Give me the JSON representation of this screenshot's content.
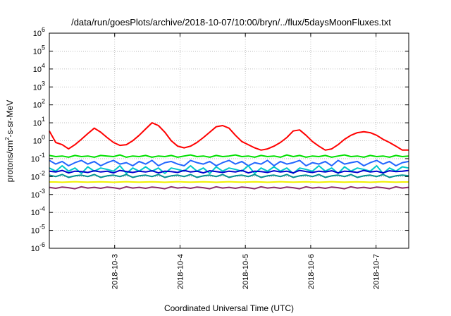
{
  "chart_data": {
    "type": "line",
    "title": "/data/run/goesPlots/archive/2018-10-07/10:00/bryn/../flux/5daysMoonFluxes.txt",
    "xlabel": "Coordinated Universal Time (UTC)",
    "ylabel_main": "protons/cm",
    "ylabel_sup": "2",
    "ylabel_tail": "-s-sr-MeV",
    "yscale": "log",
    "ylim_exp": [
      -6,
      6
    ],
    "y_tick_exponents": [
      -6,
      -5,
      -4,
      -3,
      -2,
      -1,
      0,
      1,
      2,
      3,
      4,
      5,
      6
    ],
    "y_tick_base": "10",
    "xlim_days": [
      0,
      5.5
    ],
    "x_ticks": [
      {
        "label": "2018-10-3",
        "day": 1.0
      },
      {
        "label": "2018-10-4",
        "day": 2.0
      },
      {
        "label": "2018-10-5",
        "day": 3.0
      },
      {
        "label": "2018-10-6",
        "day": 4.0
      },
      {
        "label": "2018-10-7",
        "day": 5.0
      }
    ],
    "grid": true,
    "legend": "none",
    "series": [
      {
        "color": "#ff0000",
        "values": [
          3.5,
          0.8,
          0.6,
          0.35,
          0.6,
          1.2,
          2.5,
          5.0,
          3.0,
          1.5,
          0.8,
          0.55,
          0.6,
          1.0,
          2.0,
          4.5,
          10.0,
          7.0,
          3.0,
          1.0,
          0.5,
          0.4,
          0.5,
          0.8,
          1.5,
          3.0,
          6.0,
          7.0,
          5.0,
          2.0,
          0.9,
          0.6,
          0.4,
          0.3,
          0.35,
          0.5,
          0.8,
          1.5,
          3.5,
          4.0,
          2.0,
          0.9,
          0.5,
          0.3,
          0.35,
          0.6,
          1.2,
          2.0,
          2.8,
          3.2,
          2.8,
          2.0,
          1.2,
          0.8,
          0.5,
          0.3,
          0.3
        ]
      },
      {
        "color": "#00e000",
        "values": [
          0.15,
          0.13,
          0.14,
          0.12,
          0.15,
          0.13,
          0.14,
          0.12,
          0.15,
          0.14,
          0.13,
          0.16,
          0.12,
          0.14,
          0.13,
          0.15,
          0.12,
          0.14,
          0.13,
          0.15,
          0.12,
          0.14,
          0.16,
          0.13,
          0.14,
          0.12,
          0.15,
          0.13,
          0.14,
          0.16,
          0.13,
          0.14,
          0.12,
          0.15,
          0.13,
          0.14,
          0.12,
          0.16,
          0.13,
          0.15,
          0.12,
          0.14,
          0.13,
          0.15,
          0.12,
          0.14,
          0.16,
          0.13,
          0.14,
          0.12,
          0.15,
          0.13,
          0.14,
          0.12,
          0.15,
          0.13,
          0.14
        ]
      },
      {
        "color": "#2266ff",
        "values": [
          0.08,
          0.05,
          0.07,
          0.04,
          0.06,
          0.08,
          0.05,
          0.07,
          0.04,
          0.06,
          0.08,
          0.05,
          0.06,
          0.04,
          0.07,
          0.05,
          0.08,
          0.04,
          0.06,
          0.07,
          0.05,
          0.04,
          0.08,
          0.06,
          0.05,
          0.07,
          0.04,
          0.06,
          0.08,
          0.05,
          0.07,
          0.04,
          0.06,
          0.05,
          0.08,
          0.04,
          0.07,
          0.05,
          0.06,
          0.08,
          0.04,
          0.06,
          0.05,
          0.07,
          0.04,
          0.08,
          0.05,
          0.06,
          0.07,
          0.04,
          0.06,
          0.08,
          0.05,
          0.07,
          0.04,
          0.06,
          0.07
        ]
      },
      {
        "color": "#00c8c8",
        "values": [
          0.03,
          0.02,
          0.04,
          0.02,
          0.03,
          0.015,
          0.035,
          0.02,
          0.03,
          0.025,
          0.02,
          0.04,
          0.015,
          0.03,
          0.02,
          0.035,
          0.02,
          0.03,
          0.015,
          0.03,
          0.025,
          0.02,
          0.04,
          0.02,
          0.03,
          0.015,
          0.035,
          0.02,
          0.03,
          0.025,
          0.02,
          0.04,
          0.015,
          0.03,
          0.02,
          0.035,
          0.02,
          0.03,
          0.015,
          0.03,
          0.025,
          0.02,
          0.04,
          0.02,
          0.03,
          0.015,
          0.035,
          0.02,
          0.03,
          0.025,
          0.02,
          0.04,
          0.015,
          0.03,
          0.02,
          0.035,
          0.03
        ]
      },
      {
        "color": "#0000cc",
        "values": [
          0.02,
          0.018,
          0.022,
          0.016,
          0.02,
          0.019,
          0.017,
          0.021,
          0.018,
          0.02,
          0.016,
          0.022,
          0.019,
          0.017,
          0.02,
          0.018,
          0.021,
          0.016,
          0.02,
          0.019,
          0.017,
          0.022,
          0.018,
          0.02,
          0.016,
          0.021,
          0.019,
          0.017,
          0.02,
          0.018,
          0.022,
          0.016,
          0.02,
          0.019,
          0.017,
          0.021,
          0.018,
          0.02,
          0.016,
          0.022,
          0.019,
          0.017,
          0.02,
          0.018,
          0.021,
          0.016,
          0.02,
          0.019,
          0.017,
          0.022,
          0.018,
          0.02,
          0.016,
          0.021,
          0.019,
          0.02,
          0.022
        ]
      },
      {
        "color": "#009090",
        "values": [
          0.012,
          0.01,
          0.013,
          0.009,
          0.011,
          0.012,
          0.01,
          0.013,
          0.009,
          0.011,
          0.012,
          0.01,
          0.013,
          0.009,
          0.011,
          0.012,
          0.01,
          0.013,
          0.009,
          0.011,
          0.012,
          0.01,
          0.013,
          0.009,
          0.011,
          0.012,
          0.01,
          0.013,
          0.009,
          0.011,
          0.012,
          0.01,
          0.013,
          0.009,
          0.011,
          0.012,
          0.01,
          0.013,
          0.009,
          0.011,
          0.012,
          0.01,
          0.013,
          0.009,
          0.011,
          0.012,
          0.01,
          0.013,
          0.009,
          0.011,
          0.012,
          0.01,
          0.013,
          0.009,
          0.011,
          0.012,
          0.011
        ]
      },
      {
        "color": "#f0f000",
        "values": [
          0.005,
          0.005,
          0.0048,
          0.005,
          0.0052,
          0.005,
          0.0049,
          0.005,
          0.0051,
          0.005,
          0.0048,
          0.005,
          0.0052,
          0.005,
          0.0049,
          0.005,
          0.0051,
          0.005,
          0.0048,
          0.005,
          0.0052,
          0.005,
          0.0049,
          0.005,
          0.0051,
          0.005,
          0.0048,
          0.005,
          0.0052,
          0.005,
          0.0049,
          0.005,
          0.0051,
          0.005,
          0.0048,
          0.005,
          0.0052,
          0.005,
          0.0049,
          0.005,
          0.0051,
          0.005,
          0.0048,
          0.005,
          0.0052,
          0.005,
          0.0049,
          0.005,
          0.0051,
          0.005,
          0.0048,
          0.005,
          0.0052,
          0.005,
          0.0049,
          0.005,
          0.005
        ]
      },
      {
        "color": "#8b2d6b",
        "values": [
          0.0025,
          0.0022,
          0.0026,
          0.0024,
          0.0021,
          0.0027,
          0.0023,
          0.0025,
          0.0022,
          0.0026,
          0.0024,
          0.0021,
          0.0027,
          0.0023,
          0.0025,
          0.0022,
          0.0026,
          0.0024,
          0.0021,
          0.0027,
          0.0023,
          0.0025,
          0.0022,
          0.0026,
          0.0024,
          0.0021,
          0.0027,
          0.0023,
          0.0025,
          0.0022,
          0.0026,
          0.0024,
          0.0021,
          0.0027,
          0.0023,
          0.0025,
          0.0022,
          0.0026,
          0.0024,
          0.0021,
          0.0027,
          0.0023,
          0.0025,
          0.0022,
          0.0026,
          0.0024,
          0.0021,
          0.0027,
          0.0023,
          0.0025,
          0.0022,
          0.0026,
          0.0024,
          0.0021,
          0.0027,
          0.0023,
          0.0025
        ]
      }
    ]
  }
}
